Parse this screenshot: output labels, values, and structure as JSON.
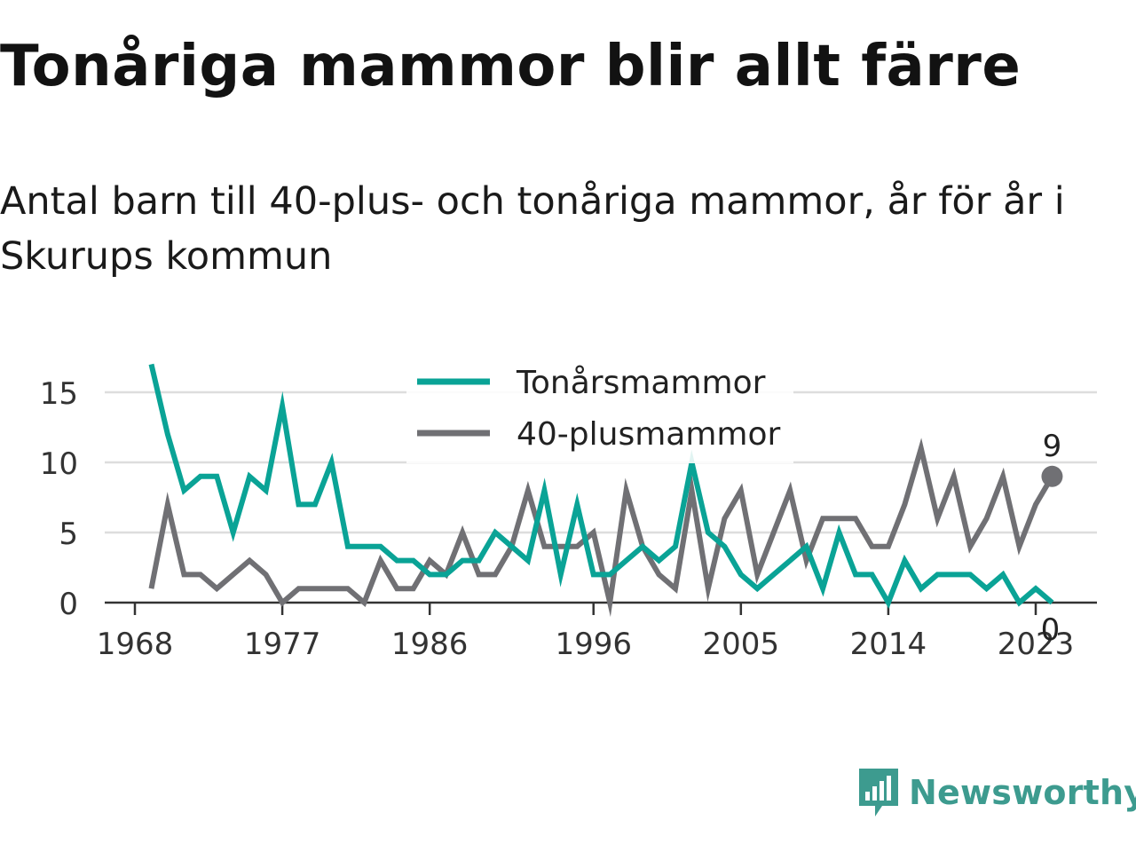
{
  "title": "Tonåriga mammor blir allt färre",
  "subtitle": "Antal barn till 40-plus- och tonåriga mammor, år för år i Skurups kommun",
  "brand": {
    "name": "Newsworthy",
    "icon": "newsworthy-bar-chart-icon"
  },
  "colors": {
    "teen": "#0aa396",
    "forty": "#707074",
    "grid": "#dddddd",
    "axis": "#333333"
  },
  "chart_data": {
    "type": "line",
    "x": [
      1969,
      1970,
      1971,
      1972,
      1973,
      1974,
      1975,
      1976,
      1977,
      1978,
      1979,
      1980,
      1981,
      1982,
      1983,
      1984,
      1985,
      1986,
      1987,
      1988,
      1989,
      1990,
      1991,
      1992,
      1993,
      1994,
      1995,
      1996,
      1997,
      1998,
      1999,
      2000,
      2001,
      2002,
      2003,
      2004,
      2005,
      2006,
      2007,
      2008,
      2009,
      2010,
      2011,
      2012,
      2013,
      2014,
      2015,
      2016,
      2017,
      2018,
      2019,
      2020,
      2021,
      2022,
      2023,
      2024
    ],
    "series": [
      {
        "name": "Tonårsmammor",
        "color": "#0aa396",
        "values": [
          17,
          12,
          8,
          9,
          9,
          5,
          9,
          8,
          14,
          7,
          7,
          10,
          4,
          4,
          4,
          3,
          3,
          2,
          2,
          3,
          3,
          5,
          4,
          3,
          8,
          2,
          7,
          2,
          2,
          3,
          4,
          3,
          4,
          10,
          5,
          4,
          2,
          1,
          2,
          3,
          4,
          1,
          5,
          2,
          2,
          0,
          3,
          1,
          2,
          2,
          2,
          1,
          2,
          0,
          1,
          0
        ]
      },
      {
        "name": "40-plusmammor",
        "color": "#707074",
        "values": [
          1,
          7,
          2,
          2,
          1,
          2,
          3,
          2,
          0,
          1,
          1,
          1,
          1,
          0,
          3,
          1,
          1,
          3,
          2,
          5,
          2,
          2,
          4,
          8,
          4,
          4,
          4,
          5,
          0,
          8,
          4,
          2,
          1,
          8,
          1,
          6,
          8,
          2,
          5,
          8,
          3,
          6,
          6,
          6,
          4,
          4,
          7,
          11,
          6,
          9,
          4,
          6,
          9,
          4,
          7,
          9
        ]
      }
    ],
    "xticks": [
      "1968",
      "1977",
      "1986",
      "1996",
      "2005",
      "2014",
      "2023"
    ],
    "yticks": [
      "0",
      "5",
      "10",
      "15"
    ],
    "ylim": [
      0,
      17
    ],
    "grid": "horizontal",
    "legend": "top-center",
    "end_labels": {
      "teen": "0",
      "forty": "9"
    }
  }
}
